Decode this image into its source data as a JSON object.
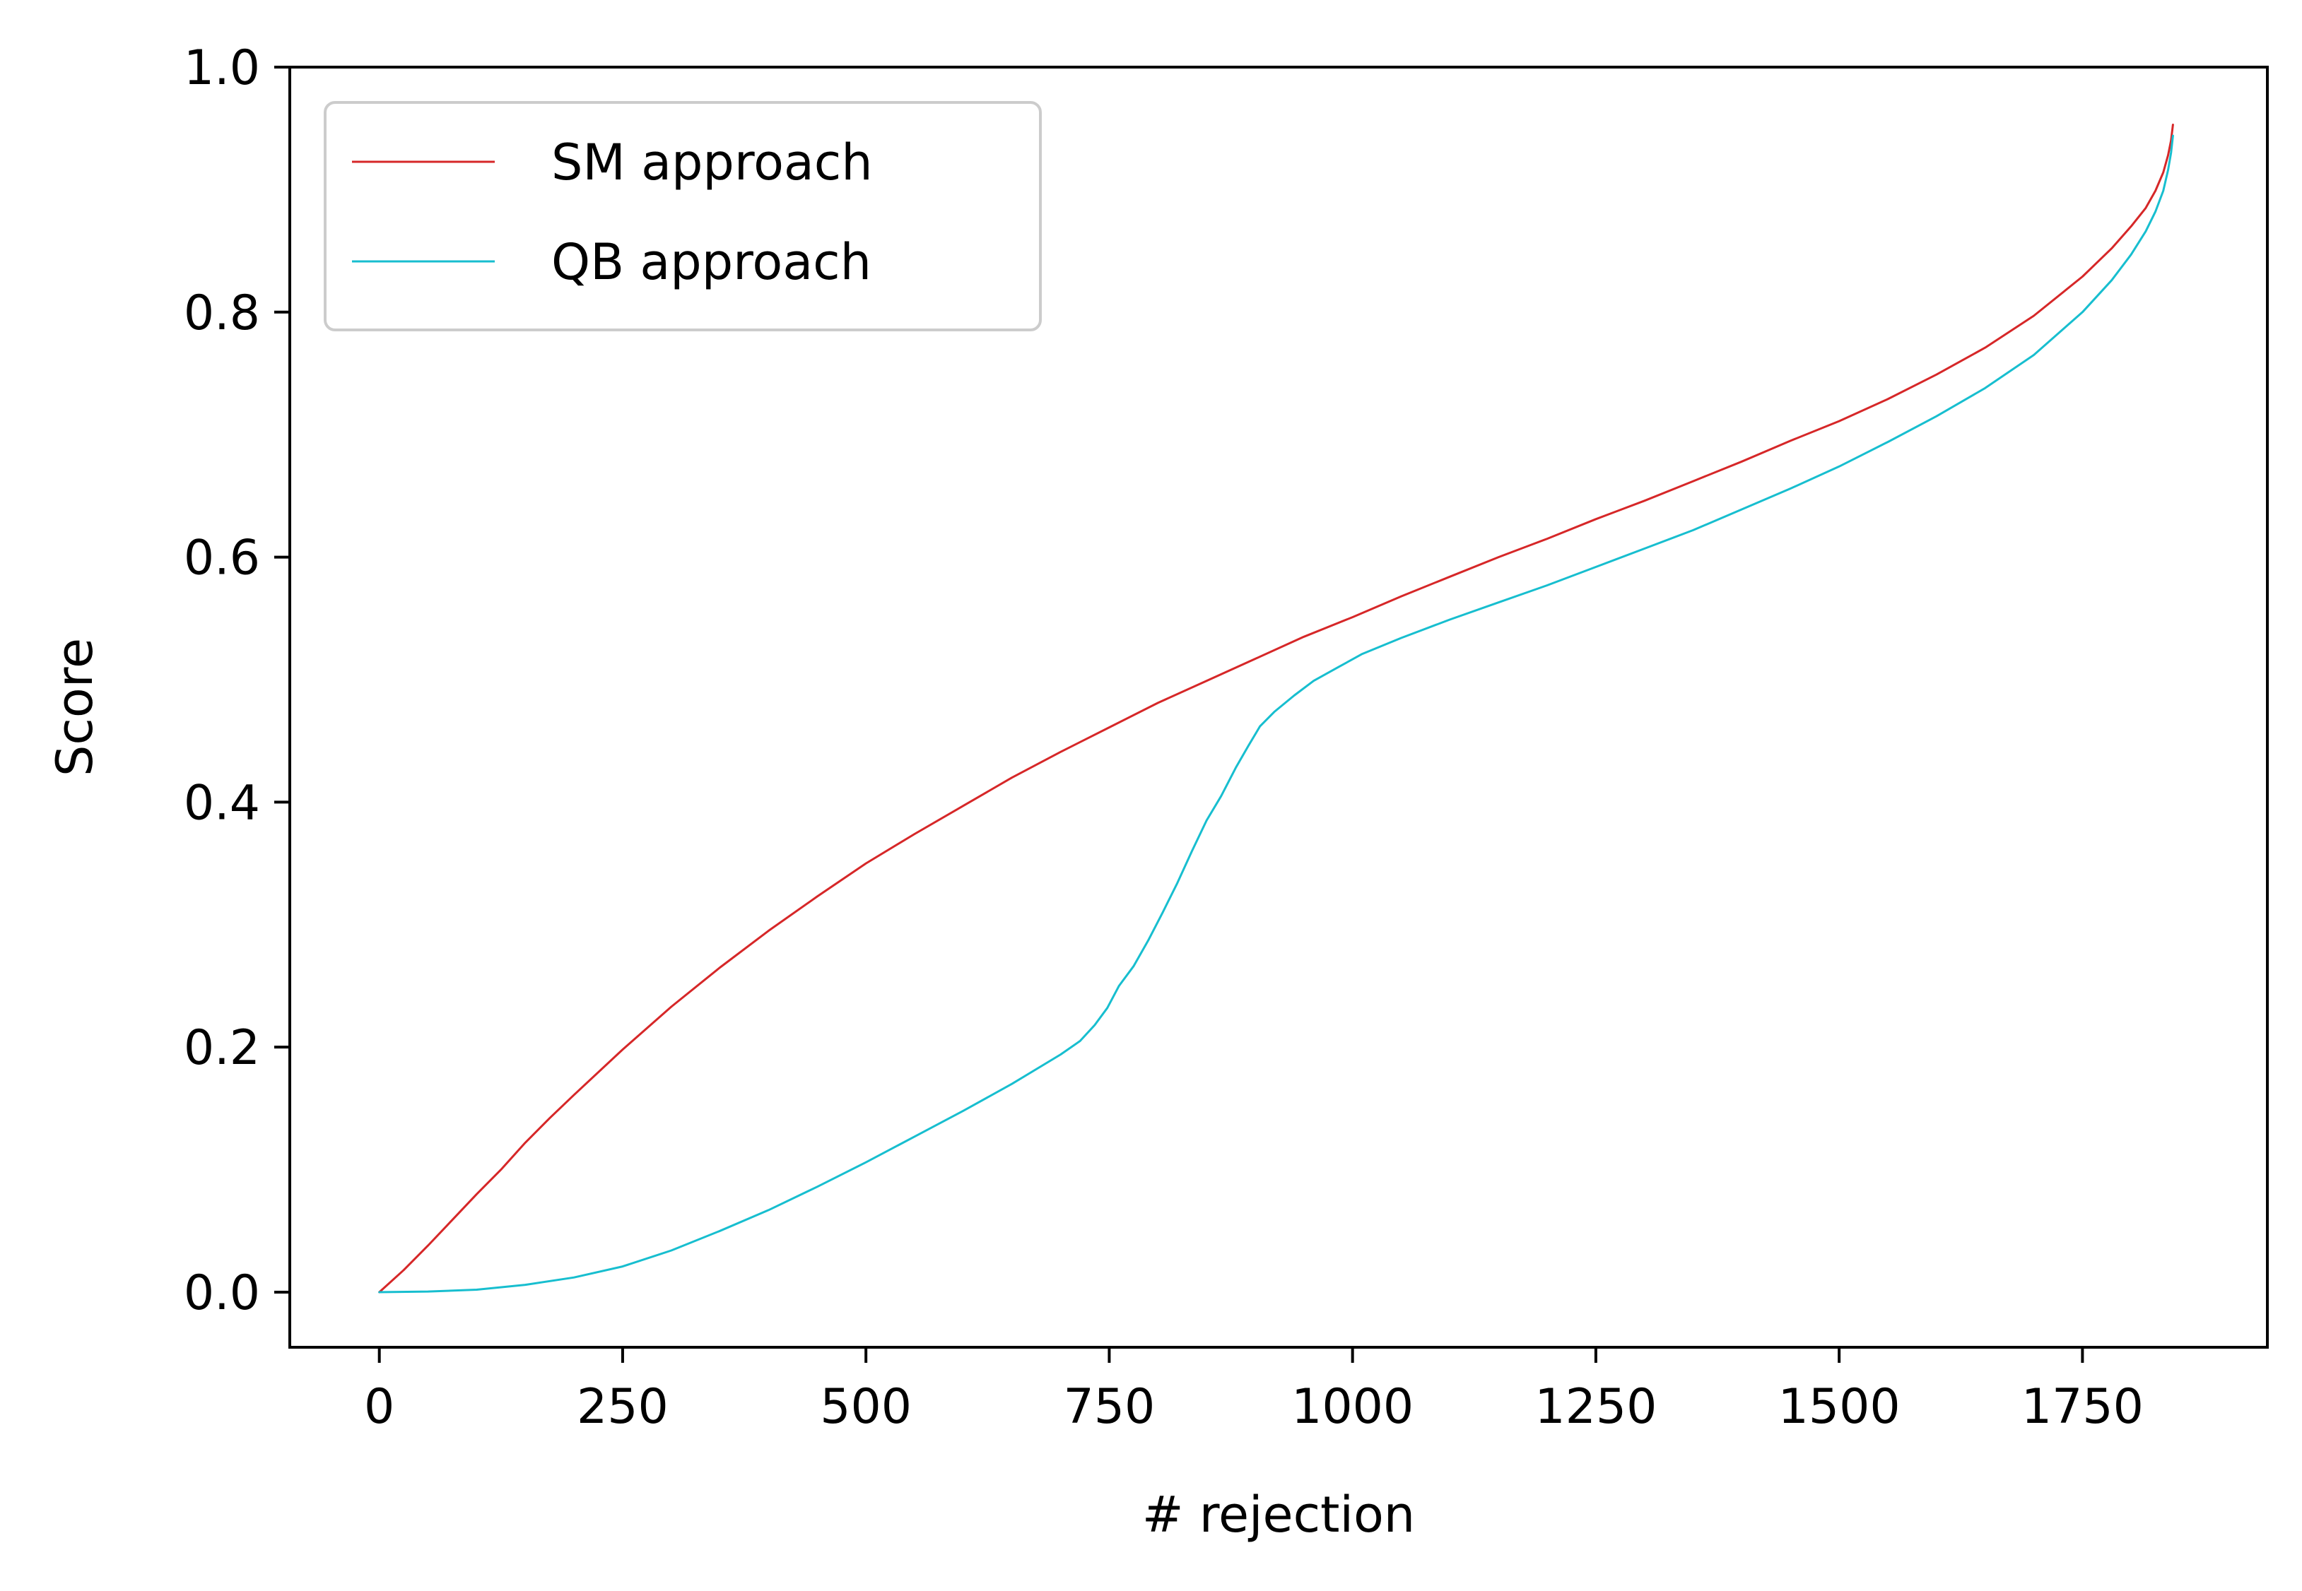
{
  "chart_data": {
    "type": "line",
    "xlabel": "# rejection",
    "ylabel": "Score",
    "xlim": [
      -92,
      1940
    ],
    "ylim": [
      -0.045,
      1.0
    ],
    "xticks": [
      0,
      250,
      500,
      750,
      1000,
      1250,
      1500,
      1750
    ],
    "xtick_labels": [
      "0",
      "250",
      "500",
      "750",
      "1000",
      "1250",
      "1500",
      "1750"
    ],
    "yticks": [
      0.0,
      0.2,
      0.4,
      0.6,
      0.8,
      1.0
    ],
    "ytick_labels": [
      "0.0",
      "0.2",
      "0.4",
      "0.6",
      "0.8",
      "1.0"
    ],
    "grid": false,
    "legend_position": "upper-left",
    "series": [
      {
        "name": "SM approach",
        "color": "#d62728",
        "points": [
          [
            0,
            0.0
          ],
          [
            25,
            0.018
          ],
          [
            50,
            0.038
          ],
          [
            75,
            0.059
          ],
          [
            100,
            0.08
          ],
          [
            125,
            0.1
          ],
          [
            150,
            0.122
          ],
          [
            175,
            0.142
          ],
          [
            200,
            0.161
          ],
          [
            250,
            0.198
          ],
          [
            300,
            0.233
          ],
          [
            350,
            0.265
          ],
          [
            400,
            0.295
          ],
          [
            450,
            0.323
          ],
          [
            500,
            0.35
          ],
          [
            550,
            0.374
          ],
          [
            600,
            0.397
          ],
          [
            650,
            0.42
          ],
          [
            700,
            0.441
          ],
          [
            750,
            0.461
          ],
          [
            800,
            0.481
          ],
          [
            850,
            0.499
          ],
          [
            900,
            0.517
          ],
          [
            950,
            0.535
          ],
          [
            1000,
            0.551
          ],
          [
            1050,
            0.568
          ],
          [
            1100,
            0.584
          ],
          [
            1150,
            0.6
          ],
          [
            1200,
            0.615
          ],
          [
            1250,
            0.631
          ],
          [
            1300,
            0.646
          ],
          [
            1350,
            0.662
          ],
          [
            1400,
            0.678
          ],
          [
            1450,
            0.695
          ],
          [
            1500,
            0.711
          ],
          [
            1550,
            0.729
          ],
          [
            1600,
            0.749
          ],
          [
            1650,
            0.771
          ],
          [
            1700,
            0.797
          ],
          [
            1750,
            0.829
          ],
          [
            1780,
            0.852
          ],
          [
            1800,
            0.87
          ],
          [
            1815,
            0.885
          ],
          [
            1825,
            0.899
          ],
          [
            1833,
            0.914
          ],
          [
            1838,
            0.928
          ],
          [
            1841,
            0.94
          ],
          [
            1843,
            0.953
          ]
        ]
      },
      {
        "name": "QB approach",
        "color": "#17becf",
        "points": [
          [
            0,
            0.0
          ],
          [
            50,
            0.0005
          ],
          [
            100,
            0.002
          ],
          [
            150,
            0.006
          ],
          [
            200,
            0.012
          ],
          [
            250,
            0.021
          ],
          [
            300,
            0.034
          ],
          [
            350,
            0.05
          ],
          [
            400,
            0.067
          ],
          [
            450,
            0.086
          ],
          [
            500,
            0.106
          ],
          [
            550,
            0.127
          ],
          [
            600,
            0.148
          ],
          [
            650,
            0.17
          ],
          [
            700,
            0.194
          ],
          [
            720,
            0.205
          ],
          [
            735,
            0.218
          ],
          [
            748,
            0.232
          ],
          [
            760,
            0.25
          ],
          [
            775,
            0.266
          ],
          [
            790,
            0.287
          ],
          [
            805,
            0.31
          ],
          [
            820,
            0.334
          ],
          [
            835,
            0.36
          ],
          [
            850,
            0.385
          ],
          [
            865,
            0.405
          ],
          [
            880,
            0.428
          ],
          [
            893,
            0.446
          ],
          [
            905,
            0.462
          ],
          [
            920,
            0.474
          ],
          [
            940,
            0.487
          ],
          [
            960,
            0.499
          ],
          [
            985,
            0.51
          ],
          [
            1010,
            0.521
          ],
          [
            1050,
            0.534
          ],
          [
            1100,
            0.549
          ],
          [
            1150,
            0.563
          ],
          [
            1200,
            0.577
          ],
          [
            1250,
            0.592
          ],
          [
            1300,
            0.607
          ],
          [
            1350,
            0.622
          ],
          [
            1400,
            0.639
          ],
          [
            1450,
            0.656
          ],
          [
            1500,
            0.674
          ],
          [
            1550,
            0.694
          ],
          [
            1600,
            0.715
          ],
          [
            1650,
            0.738
          ],
          [
            1700,
            0.765
          ],
          [
            1750,
            0.8
          ],
          [
            1780,
            0.826
          ],
          [
            1800,
            0.847
          ],
          [
            1815,
            0.866
          ],
          [
            1825,
            0.882
          ],
          [
            1833,
            0.899
          ],
          [
            1838,
            0.916
          ],
          [
            1841,
            0.93
          ],
          [
            1843,
            0.944
          ]
        ]
      }
    ]
  }
}
